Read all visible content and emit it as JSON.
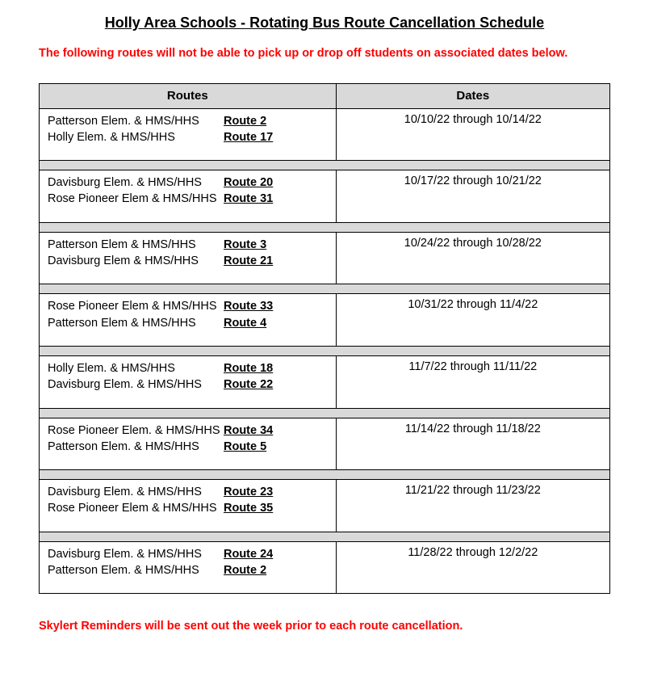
{
  "colors": {
    "text": "#000000",
    "notice": "#ff0000",
    "header_bg": "#d9d9d9",
    "spacer_bg": "#d9d9d9",
    "border": "#000000",
    "background": "#ffffff"
  },
  "typography": {
    "family": "Arial",
    "title_pt": 14,
    "body_pt": 11,
    "notice_pt": 11
  },
  "title": "Holly Area Schools - Rotating Bus Route Cancellation Schedule",
  "notice": "The following routes will not be able to pick up or drop off students on associated dates below.",
  "table": {
    "columns": [
      "Routes",
      "Dates"
    ],
    "rows": [
      {
        "routes": [
          {
            "school": "Patterson Elem. & HMS/HHS",
            "route": "Route 2"
          },
          {
            "school": "Holly Elem. & HMS/HHS",
            "route": "Route 17"
          }
        ],
        "dates": "10/10/22 through 10/14/22"
      },
      {
        "routes": [
          {
            "school": "Davisburg Elem. & HMS/HHS",
            "route": "Route 20"
          },
          {
            "school": "Rose Pioneer Elem & HMS/HHS",
            "route": "Route 31"
          }
        ],
        "dates": "10/17/22 through 10/21/22"
      },
      {
        "routes": [
          {
            "school": "Patterson Elem & HMS/HHS",
            "route": "Route 3"
          },
          {
            "school": "Davisburg Elem & HMS/HHS",
            "route": "Route 21"
          }
        ],
        "dates": "10/24/22 through 10/28/22"
      },
      {
        "routes": [
          {
            "school": "Rose Pioneer Elem & HMS/HHS",
            "route": "Route 33"
          },
          {
            "school": "Patterson Elem & HMS/HHS",
            "route": "Route 4"
          }
        ],
        "dates": "10/31/22 through 11/4/22"
      },
      {
        "routes": [
          {
            "school": "Holly Elem. & HMS/HHS",
            "route": "Route 18"
          },
          {
            "school": "Davisburg Elem. & HMS/HHS",
            "route": "Route 22"
          }
        ],
        "dates": "11/7/22 through 11/11/22"
      },
      {
        "routes": [
          {
            "school": "Rose Pioneer Elem. & HMS/HHS",
            "route": "Route 34"
          },
          {
            "school": "Patterson Elem. & HMS/HHS",
            "route": "Route 5"
          }
        ],
        "dates": "11/14/22 through 11/18/22"
      },
      {
        "routes": [
          {
            "school": "Davisburg Elem. & HMS/HHS",
            "route": "Route 23"
          },
          {
            "school": "Rose Pioneer Elem & HMS/HHS",
            "route": "Route 35"
          }
        ],
        "dates": "11/21/22 through 11/23/22"
      },
      {
        "routes": [
          {
            "school": "Davisburg Elem. & HMS/HHS",
            "route": "Route 24"
          },
          {
            "school": "Patterson Elem. & HMS/HHS",
            "route": "Route 2"
          }
        ],
        "dates": "11/28/22 through 12/2/22"
      }
    ]
  },
  "footer_note": "Skylert Reminders will be sent out the week prior to each route cancellation."
}
